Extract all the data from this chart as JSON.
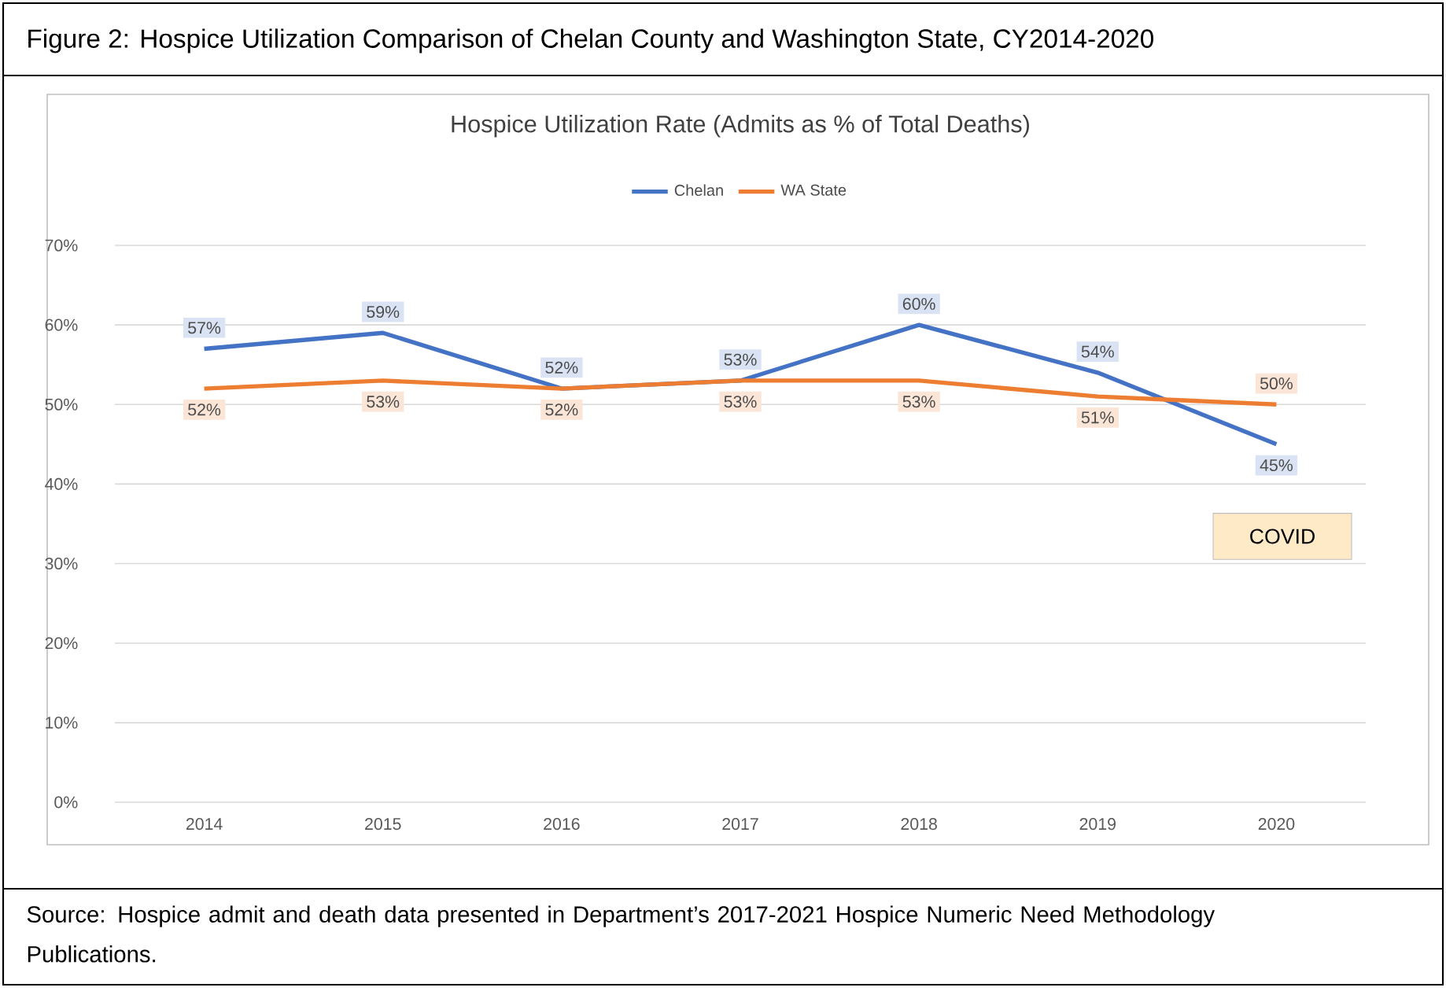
{
  "chart_data": {
    "type": "line",
    "title": "Figure 2: Hospice Utilization Comparison of Chelan County and Washington State, CY2014-2020",
    "subtitle": "Hospice Utilization Rate (Admits as % of Total Deaths)",
    "categories": [
      "2014",
      "2015",
      "2016",
      "2017",
      "2018",
      "2019",
      "2020"
    ],
    "series": [
      {
        "name": "Chelan",
        "color": "#4472c4",
        "values": [
          57,
          59,
          52,
          53,
          60,
          54,
          45
        ],
        "value_labels": [
          "57%",
          "59%",
          "52%",
          "53%",
          "60%",
          "54%",
          "45%"
        ]
      },
      {
        "name": "WA State",
        "color": "#ed7d31",
        "values": [
          52,
          53,
          52,
          53,
          53,
          51,
          50
        ],
        "value_labels": [
          "52%",
          "53%",
          "52%",
          "53%",
          "53%",
          "51%",
          "50%"
        ]
      }
    ],
    "ylim": [
      0,
      70
    ],
    "yticks": [
      {
        "value": 0,
        "label": "0%"
      },
      {
        "value": 10,
        "label": "10%"
      },
      {
        "value": 20,
        "label": "20%"
      },
      {
        "value": 30,
        "label": "30%"
      },
      {
        "value": 40,
        "label": "40%"
      },
      {
        "value": 50,
        "label": "50%"
      },
      {
        "value": 60,
        "label": "60%"
      },
      {
        "value": 70,
        "label": "70%"
      }
    ],
    "grid": "y",
    "legend": "top",
    "annotations": [
      "COVID",
      "Source: Hospice admit and death data presented in Department’s 2017-2021 Hospice Numeric Need Methodology Publications."
    ]
  }
}
